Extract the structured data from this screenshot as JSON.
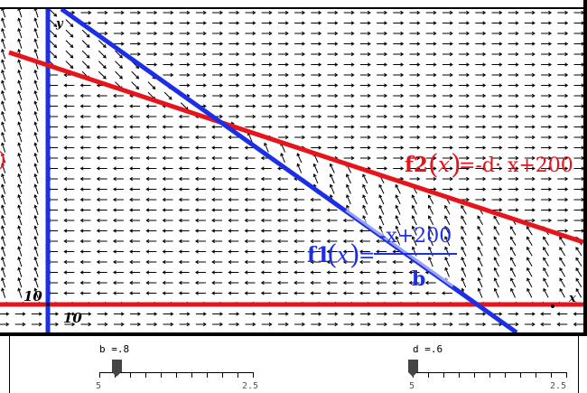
{
  "graph": {
    "y_axis_label": "y",
    "x_axis_label": "x",
    "y_tick_label": "10",
    "x_tick_label": "10",
    "left_edge_fragment": ")",
    "f1": {
      "name": "f1",
      "argument": "x",
      "equals": "=",
      "numerator": "-x+200",
      "denominator": "b",
      "color": "#1c2fe6"
    },
    "f2": {
      "name": "f2",
      "argument": "x",
      "rhs": "=-d· x+200",
      "color": "#e8141c"
    },
    "x_axis_color": "#e8141c",
    "y_axis_color": "#1c2fe6",
    "field_color": "#000000"
  },
  "sliders": {
    "b": {
      "label": "b =.8",
      "value": 0.8,
      "min_label": "5",
      "max_label": "2.5"
    },
    "d": {
      "label": "d =.6",
      "value": 0.6,
      "min_label": "5",
      "max_label": "2.5"
    }
  }
}
